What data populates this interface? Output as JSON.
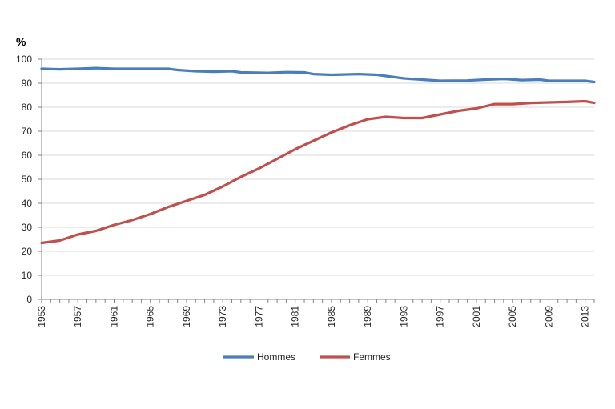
{
  "chart_data": {
    "type": "line",
    "title": "",
    "xlabel": "",
    "ylabel": "%",
    "ylim": [
      0,
      100
    ],
    "yticks": [
      0,
      10,
      20,
      30,
      40,
      50,
      60,
      70,
      80,
      90,
      100
    ],
    "xlim": [
      1953,
      2014
    ],
    "xticks": [
      1953,
      1957,
      1961,
      1965,
      1969,
      1973,
      1977,
      1981,
      1985,
      1989,
      1993,
      1997,
      2001,
      2005,
      2009,
      2013
    ],
    "grid": "horizontal",
    "legend": "bottom",
    "series": [
      {
        "name": "Hommes",
        "color": "#4a7ebb",
        "points": [
          [
            1953,
            96
          ],
          [
            1955,
            95.8
          ],
          [
            1957,
            96
          ],
          [
            1959,
            96.3
          ],
          [
            1961,
            96
          ],
          [
            1963,
            96
          ],
          [
            1965,
            96
          ],
          [
            1967,
            96
          ],
          [
            1968,
            95.5
          ],
          [
            1970,
            95
          ],
          [
            1972,
            94.8
          ],
          [
            1974,
            95
          ],
          [
            1975,
            94.5
          ],
          [
            1978,
            94.3
          ],
          [
            1980,
            94.6
          ],
          [
            1982,
            94.5
          ],
          [
            1983,
            93.8
          ],
          [
            1985,
            93.5
          ],
          [
            1988,
            93.8
          ],
          [
            1990,
            93.5
          ],
          [
            1993,
            92
          ],
          [
            1995,
            91.5
          ],
          [
            1997,
            91
          ],
          [
            2000,
            91.1
          ],
          [
            2002,
            91.5
          ],
          [
            2004,
            91.8
          ],
          [
            2006,
            91.3
          ],
          [
            2008,
            91.5
          ],
          [
            2009,
            91
          ],
          [
            2011,
            91
          ],
          [
            2013,
            91
          ],
          [
            2014,
            90.5
          ]
        ]
      },
      {
        "name": "Femmes",
        "color": "#c0504d",
        "points": [
          [
            1953,
            23.5
          ],
          [
            1955,
            24.5
          ],
          [
            1957,
            27
          ],
          [
            1959,
            28.5
          ],
          [
            1961,
            31
          ],
          [
            1963,
            33
          ],
          [
            1965,
            35.5
          ],
          [
            1967,
            38.5
          ],
          [
            1969,
            41
          ],
          [
            1971,
            43.5
          ],
          [
            1973,
            47
          ],
          [
            1975,
            51
          ],
          [
            1977,
            54.5
          ],
          [
            1979,
            58.5
          ],
          [
            1981,
            62.5
          ],
          [
            1983,
            66
          ],
          [
            1985,
            69.5
          ],
          [
            1987,
            72.5
          ],
          [
            1989,
            75
          ],
          [
            1991,
            76
          ],
          [
            1993,
            75.5
          ],
          [
            1995,
            75.5
          ],
          [
            1997,
            77
          ],
          [
            1999,
            78.5
          ],
          [
            2001,
            79.5
          ],
          [
            2003,
            81.3
          ],
          [
            2005,
            81.3
          ],
          [
            2007,
            81.8
          ],
          [
            2009,
            82
          ],
          [
            2011,
            82.2
          ],
          [
            2013,
            82.5
          ],
          [
            2014,
            81.8
          ]
        ]
      }
    ]
  }
}
